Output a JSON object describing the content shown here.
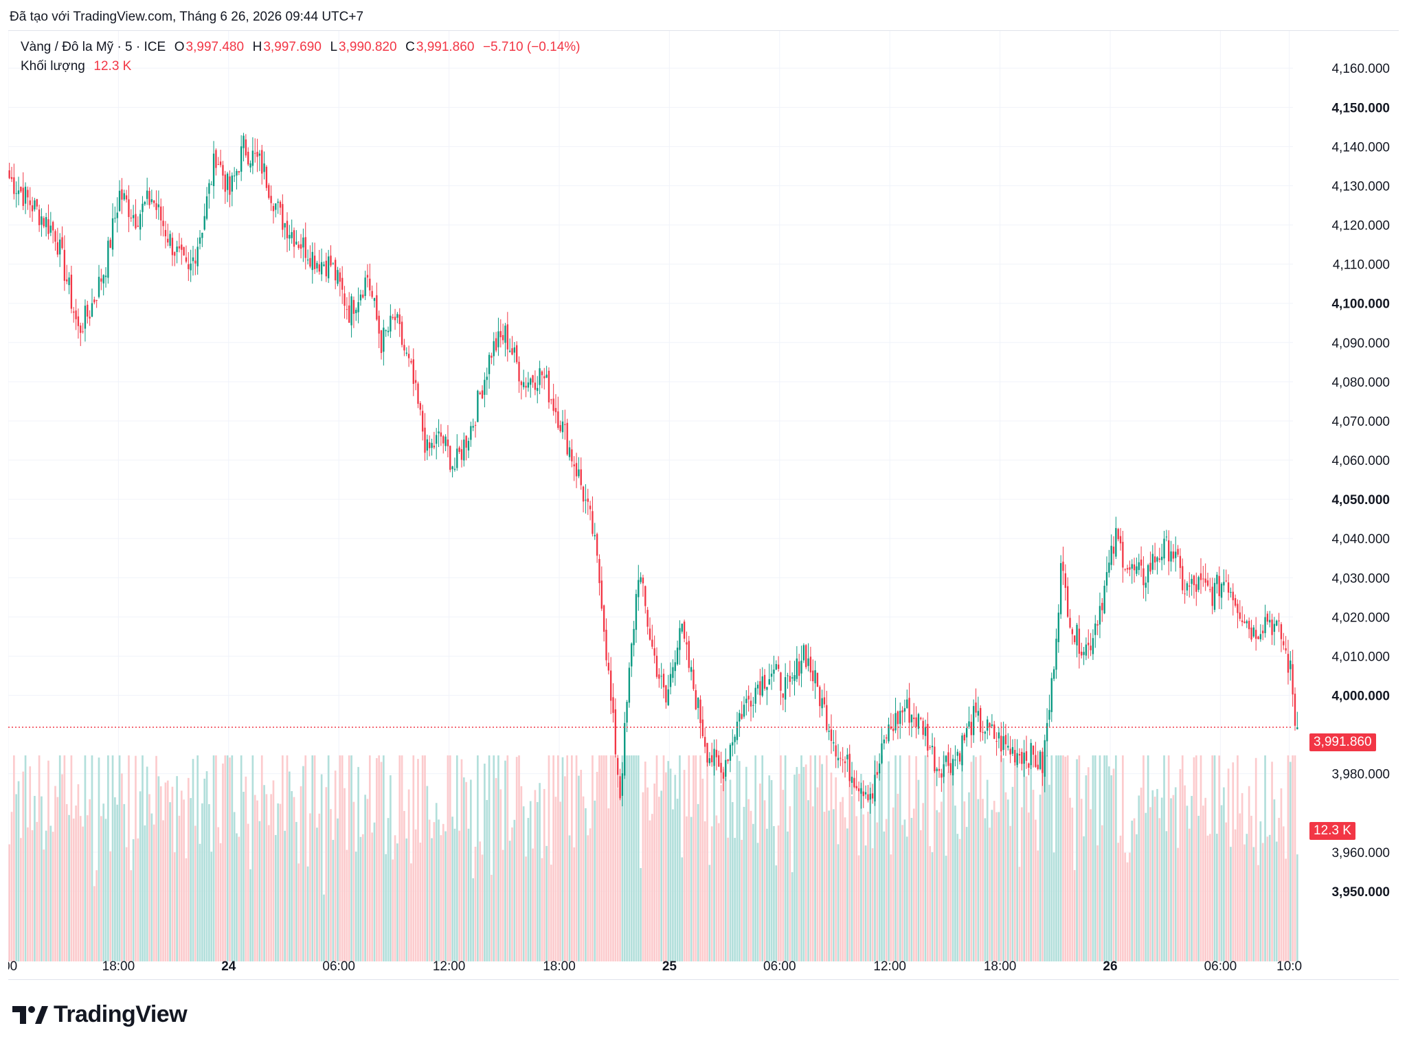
{
  "header": {
    "created_text": "Đã tạo với TradingView.com, Tháng 6 26, 2026 09:44 UTC+7"
  },
  "legend": {
    "symbol": "Vàng / Đô la Mỹ · 5 · ICE",
    "o_label": "O",
    "o_value": "3,997.480",
    "h_label": "H",
    "h_value": "3,997.690",
    "l_label": "L",
    "l_value": "3,990.820",
    "c_label": "C",
    "c_value": "3,991.860",
    "change": "−5.710 (−0.14%)",
    "volume_label": "Khối lượng",
    "volume_value": "12.3 K"
  },
  "price_tag": "3,991.860",
  "volume_tag": "12.3 K",
  "brand": {
    "name": "TradingView",
    "logo_icon": "tradingview-logo-icon"
  },
  "colors": {
    "up": "#089981",
    "down": "#f23645",
    "up_vol": "#b2dfdb",
    "down_vol": "#fccbcd",
    "grid": "#f0f3fa"
  },
  "chart_data": {
    "type": "candlestick",
    "ylim": [
      3940,
      4166
    ],
    "y_ticks": [
      "4,160.000",
      "4,150.000",
      "4,140.000",
      "4,130.000",
      "4,120.000",
      "4,110.000",
      "4,100.000",
      "4,090.000",
      "4,080.000",
      "4,070.000",
      "4,060.000",
      "4,050.000",
      "4,040.000",
      "4,030.000",
      "4,020.000",
      "4,010.000",
      "4,000.000",
      "3,980.000",
      "3,960.000",
      "3,950.000"
    ],
    "y_tick_values": [
      4160,
      4150,
      4140,
      4130,
      4120,
      4110,
      4100,
      4090,
      4080,
      4070,
      4060,
      4050,
      4040,
      4030,
      4020,
      4010,
      4000,
      3980,
      3960,
      3950
    ],
    "y_tick_bold": [
      false,
      true,
      false,
      false,
      false,
      false,
      true,
      false,
      false,
      false,
      false,
      true,
      false,
      false,
      false,
      false,
      true,
      false,
      false,
      true
    ],
    "x_ticks": [
      ":00",
      "18:00",
      "24",
      "06:00",
      "12:00",
      "18:00",
      "25",
      "06:00",
      "12:00",
      "18:00",
      "26",
      "06:00",
      "10:0"
    ],
    "x_tick_bold": [
      false,
      false,
      true,
      false,
      false,
      false,
      true,
      false,
      false,
      false,
      true,
      false,
      false
    ],
    "x_tick_index": [
      0,
      48,
      96,
      144,
      192,
      240,
      288,
      336,
      384,
      432,
      480,
      528,
      558
    ],
    "last_close": 3991.86,
    "last_volume": "12.3 K",
    "anchors": [
      [
        0,
        4132
      ],
      [
        10,
        4125
      ],
      [
        20,
        4118
      ],
      [
        25,
        4106
      ],
      [
        30,
        4093
      ],
      [
        35,
        4098
      ],
      [
        42,
        4110
      ],
      [
        48,
        4128
      ],
      [
        55,
        4122
      ],
      [
        62,
        4127
      ],
      [
        70,
        4116
      ],
      [
        78,
        4107
      ],
      [
        84,
        4120
      ],
      [
        90,
        4138
      ],
      [
        96,
        4128
      ],
      [
        102,
        4140
      ],
      [
        110,
        4135
      ],
      [
        118,
        4122
      ],
      [
        126,
        4116
      ],
      [
        134,
        4111
      ],
      [
        140,
        4110
      ],
      [
        148,
        4098
      ],
      [
        156,
        4107
      ],
      [
        162,
        4090
      ],
      [
        168,
        4096
      ],
      [
        175,
        4082
      ],
      [
        182,
        4062
      ],
      [
        188,
        4066
      ],
      [
        194,
        4058
      ],
      [
        202,
        4070
      ],
      [
        210,
        4088
      ],
      [
        216,
        4092
      ],
      [
        224,
        4080
      ],
      [
        232,
        4082
      ],
      [
        240,
        4070
      ],
      [
        248,
        4056
      ],
      [
        254,
        4042
      ],
      [
        258,
        4025
      ],
      [
        262,
        3998
      ],
      [
        266,
        3975
      ],
      [
        270,
        4005
      ],
      [
        274,
        4032
      ],
      [
        280,
        4012
      ],
      [
        286,
        3998
      ],
      [
        292,
        4018
      ],
      [
        298,
        4002
      ],
      [
        304,
        3986
      ],
      [
        310,
        3980
      ],
      [
        318,
        3995
      ],
      [
        326,
        4003
      ],
      [
        332,
        4006
      ],
      [
        340,
        4001
      ],
      [
        346,
        4012
      ],
      [
        354,
        3998
      ],
      [
        362,
        3984
      ],
      [
        370,
        3978
      ],
      [
        376,
        3975
      ],
      [
        382,
        3990
      ],
      [
        390,
        3997
      ],
      [
        398,
        3992
      ],
      [
        404,
        3982
      ],
      [
        412,
        3984
      ],
      [
        420,
        3994
      ],
      [
        428,
        3990
      ],
      [
        436,
        3986
      ],
      [
        444,
        3985
      ],
      [
        450,
        3982
      ],
      [
        454,
        4002
      ],
      [
        458,
        4032
      ],
      [
        464,
        4015
      ],
      [
        470,
        4012
      ],
      [
        476,
        4025
      ],
      [
        482,
        4040
      ],
      [
        488,
        4032
      ],
      [
        494,
        4030
      ],
      [
        500,
        4036
      ],
      [
        506,
        4038
      ],
      [
        512,
        4027
      ],
      [
        518,
        4028
      ],
      [
        524,
        4026
      ],
      [
        530,
        4030
      ],
      [
        536,
        4022
      ],
      [
        542,
        4016
      ],
      [
        548,
        4020
      ],
      [
        554,
        4015
      ],
      [
        558,
        4006
      ],
      [
        560,
        3994
      ],
      [
        561,
        3991.86
      ]
    ],
    "volume_pattern": "higher near large moves; approx 2k-28k per bar"
  }
}
